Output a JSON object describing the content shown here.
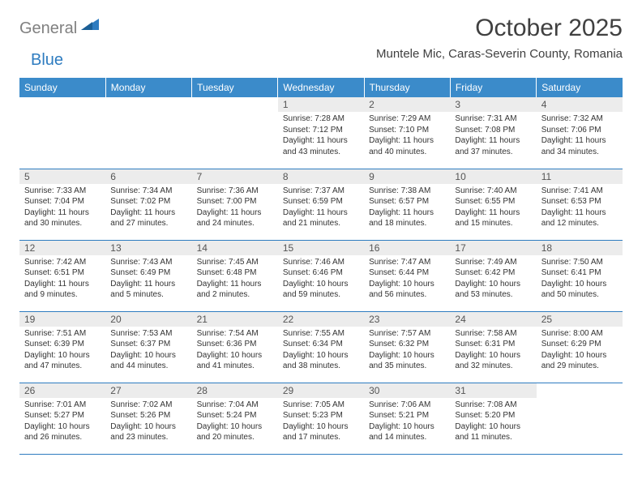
{
  "brand": {
    "text_general": "General",
    "text_blue": "Blue"
  },
  "title": "October 2025",
  "location": "Muntele Mic, Caras-Severin County, Romania",
  "colors": {
    "header_bg": "#3b8bca",
    "header_text": "#ffffff",
    "daynum_bg": "#ececec",
    "daynum_text": "#555555",
    "body_text": "#333333",
    "rule": "#2e7cc0",
    "logo_gray": "#808080",
    "logo_blue": "#2e7cc0",
    "page_bg": "#ffffff"
  },
  "typography": {
    "title_pt": 30,
    "location_pt": 15,
    "dayheader_pt": 12,
    "daynum_pt": 12,
    "daydata_pt": 10
  },
  "day_headers": [
    "Sunday",
    "Monday",
    "Tuesday",
    "Wednesday",
    "Thursday",
    "Friday",
    "Saturday"
  ],
  "weeks": [
    [
      {
        "empty": true
      },
      {
        "empty": true
      },
      {
        "empty": true
      },
      {
        "n": "1",
        "sr": "Sunrise: 7:28 AM",
        "ss": "Sunset: 7:12 PM",
        "dl1": "Daylight: 11 hours",
        "dl2": "and 43 minutes."
      },
      {
        "n": "2",
        "sr": "Sunrise: 7:29 AM",
        "ss": "Sunset: 7:10 PM",
        "dl1": "Daylight: 11 hours",
        "dl2": "and 40 minutes."
      },
      {
        "n": "3",
        "sr": "Sunrise: 7:31 AM",
        "ss": "Sunset: 7:08 PM",
        "dl1": "Daylight: 11 hours",
        "dl2": "and 37 minutes."
      },
      {
        "n": "4",
        "sr": "Sunrise: 7:32 AM",
        "ss": "Sunset: 7:06 PM",
        "dl1": "Daylight: 11 hours",
        "dl2": "and 34 minutes."
      }
    ],
    [
      {
        "n": "5",
        "sr": "Sunrise: 7:33 AM",
        "ss": "Sunset: 7:04 PM",
        "dl1": "Daylight: 11 hours",
        "dl2": "and 30 minutes."
      },
      {
        "n": "6",
        "sr": "Sunrise: 7:34 AM",
        "ss": "Sunset: 7:02 PM",
        "dl1": "Daylight: 11 hours",
        "dl2": "and 27 minutes."
      },
      {
        "n": "7",
        "sr": "Sunrise: 7:36 AM",
        "ss": "Sunset: 7:00 PM",
        "dl1": "Daylight: 11 hours",
        "dl2": "and 24 minutes."
      },
      {
        "n": "8",
        "sr": "Sunrise: 7:37 AM",
        "ss": "Sunset: 6:59 PM",
        "dl1": "Daylight: 11 hours",
        "dl2": "and 21 minutes."
      },
      {
        "n": "9",
        "sr": "Sunrise: 7:38 AM",
        "ss": "Sunset: 6:57 PM",
        "dl1": "Daylight: 11 hours",
        "dl2": "and 18 minutes."
      },
      {
        "n": "10",
        "sr": "Sunrise: 7:40 AM",
        "ss": "Sunset: 6:55 PM",
        "dl1": "Daylight: 11 hours",
        "dl2": "and 15 minutes."
      },
      {
        "n": "11",
        "sr": "Sunrise: 7:41 AM",
        "ss": "Sunset: 6:53 PM",
        "dl1": "Daylight: 11 hours",
        "dl2": "and 12 minutes."
      }
    ],
    [
      {
        "n": "12",
        "sr": "Sunrise: 7:42 AM",
        "ss": "Sunset: 6:51 PM",
        "dl1": "Daylight: 11 hours",
        "dl2": "and 9 minutes."
      },
      {
        "n": "13",
        "sr": "Sunrise: 7:43 AM",
        "ss": "Sunset: 6:49 PM",
        "dl1": "Daylight: 11 hours",
        "dl2": "and 5 minutes."
      },
      {
        "n": "14",
        "sr": "Sunrise: 7:45 AM",
        "ss": "Sunset: 6:48 PM",
        "dl1": "Daylight: 11 hours",
        "dl2": "and 2 minutes."
      },
      {
        "n": "15",
        "sr": "Sunrise: 7:46 AM",
        "ss": "Sunset: 6:46 PM",
        "dl1": "Daylight: 10 hours",
        "dl2": "and 59 minutes."
      },
      {
        "n": "16",
        "sr": "Sunrise: 7:47 AM",
        "ss": "Sunset: 6:44 PM",
        "dl1": "Daylight: 10 hours",
        "dl2": "and 56 minutes."
      },
      {
        "n": "17",
        "sr": "Sunrise: 7:49 AM",
        "ss": "Sunset: 6:42 PM",
        "dl1": "Daylight: 10 hours",
        "dl2": "and 53 minutes."
      },
      {
        "n": "18",
        "sr": "Sunrise: 7:50 AM",
        "ss": "Sunset: 6:41 PM",
        "dl1": "Daylight: 10 hours",
        "dl2": "and 50 minutes."
      }
    ],
    [
      {
        "n": "19",
        "sr": "Sunrise: 7:51 AM",
        "ss": "Sunset: 6:39 PM",
        "dl1": "Daylight: 10 hours",
        "dl2": "and 47 minutes."
      },
      {
        "n": "20",
        "sr": "Sunrise: 7:53 AM",
        "ss": "Sunset: 6:37 PM",
        "dl1": "Daylight: 10 hours",
        "dl2": "and 44 minutes."
      },
      {
        "n": "21",
        "sr": "Sunrise: 7:54 AM",
        "ss": "Sunset: 6:36 PM",
        "dl1": "Daylight: 10 hours",
        "dl2": "and 41 minutes."
      },
      {
        "n": "22",
        "sr": "Sunrise: 7:55 AM",
        "ss": "Sunset: 6:34 PM",
        "dl1": "Daylight: 10 hours",
        "dl2": "and 38 minutes."
      },
      {
        "n": "23",
        "sr": "Sunrise: 7:57 AM",
        "ss": "Sunset: 6:32 PM",
        "dl1": "Daylight: 10 hours",
        "dl2": "and 35 minutes."
      },
      {
        "n": "24",
        "sr": "Sunrise: 7:58 AM",
        "ss": "Sunset: 6:31 PM",
        "dl1": "Daylight: 10 hours",
        "dl2": "and 32 minutes."
      },
      {
        "n": "25",
        "sr": "Sunrise: 8:00 AM",
        "ss": "Sunset: 6:29 PM",
        "dl1": "Daylight: 10 hours",
        "dl2": "and 29 minutes."
      }
    ],
    [
      {
        "n": "26",
        "sr": "Sunrise: 7:01 AM",
        "ss": "Sunset: 5:27 PM",
        "dl1": "Daylight: 10 hours",
        "dl2": "and 26 minutes."
      },
      {
        "n": "27",
        "sr": "Sunrise: 7:02 AM",
        "ss": "Sunset: 5:26 PM",
        "dl1": "Daylight: 10 hours",
        "dl2": "and 23 minutes."
      },
      {
        "n": "28",
        "sr": "Sunrise: 7:04 AM",
        "ss": "Sunset: 5:24 PM",
        "dl1": "Daylight: 10 hours",
        "dl2": "and 20 minutes."
      },
      {
        "n": "29",
        "sr": "Sunrise: 7:05 AM",
        "ss": "Sunset: 5:23 PM",
        "dl1": "Daylight: 10 hours",
        "dl2": "and 17 minutes."
      },
      {
        "n": "30",
        "sr": "Sunrise: 7:06 AM",
        "ss": "Sunset: 5:21 PM",
        "dl1": "Daylight: 10 hours",
        "dl2": "and 14 minutes."
      },
      {
        "n": "31",
        "sr": "Sunrise: 7:08 AM",
        "ss": "Sunset: 5:20 PM",
        "dl1": "Daylight: 10 hours",
        "dl2": "and 11 minutes."
      },
      {
        "empty": true
      }
    ]
  ]
}
